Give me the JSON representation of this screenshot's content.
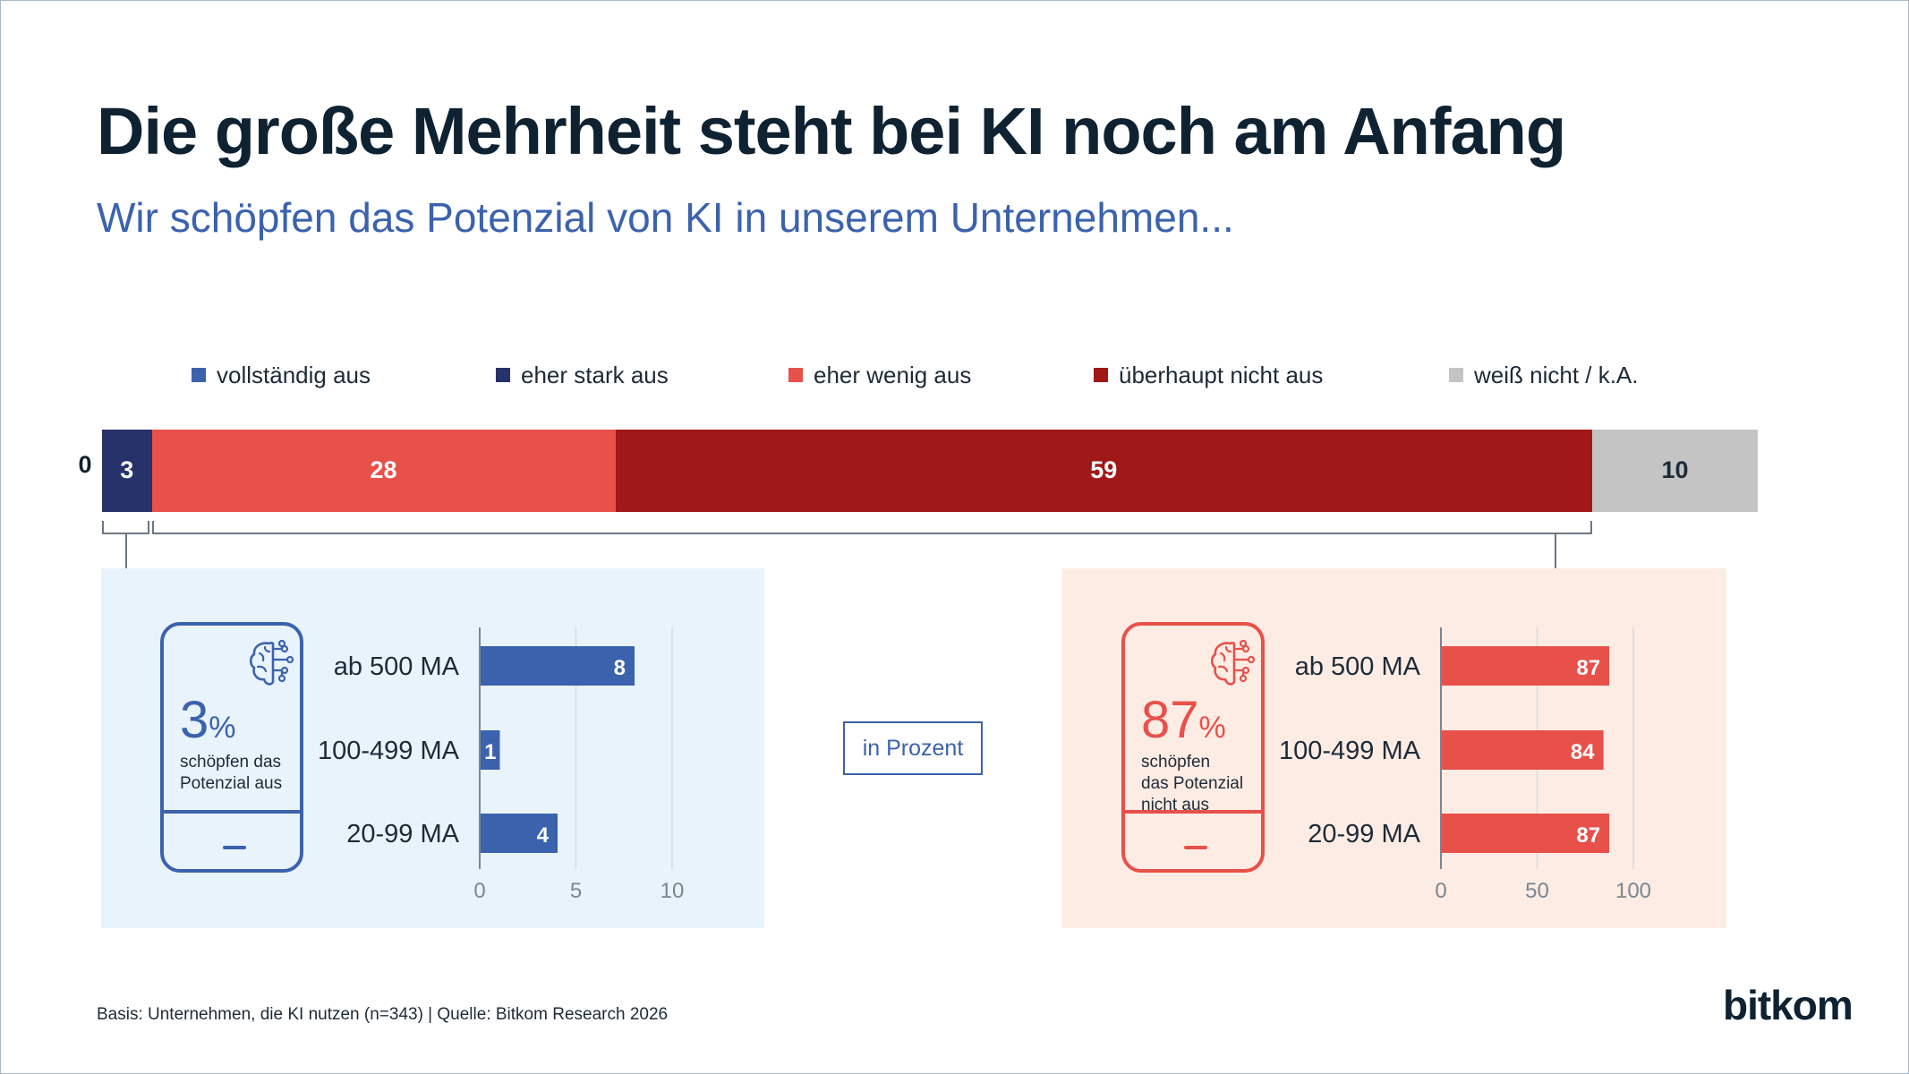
{
  "title": "Die große Mehrheit steht bei KI noch am Anfang",
  "subtitle": "Wir schöpfen das Potenzial von KI in unserem Unternehmen...",
  "unit_note": "in Prozent",
  "footnote": "Basis: Unternehmen, die KI nutzen (n=343) | Quelle: Bitkom Research 2026",
  "logo_text": "bitkom",
  "colors": {
    "vollstaendig": "#3b62ad",
    "eher_stark": "#27326b",
    "eher_wenig": "#e8504a",
    "ueberhaupt_nicht": "#a01818",
    "weiss_nicht": "#c4c4c4",
    "blue_accent": "#3b62ad",
    "red_accent": "#e8504a"
  },
  "left_summary": {
    "number": "3",
    "sign": "%",
    "caption_lines": [
      "schöpfen das",
      "Potenzial aus"
    ]
  },
  "right_summary": {
    "number": "87",
    "sign": "%",
    "caption_lines": [
      "schöpfen",
      "das Potenzial",
      "nicht aus"
    ]
  },
  "chart_data": [
    {
      "type": "bar",
      "orientation": "horizontal-stacked",
      "series": [
        {
          "name": "vollständig aus",
          "value": 0
        },
        {
          "name": "eher stark aus",
          "value": 3
        },
        {
          "name": "eher wenig aus",
          "value": 28
        },
        {
          "name": "überhaupt nicht aus",
          "value": 59
        },
        {
          "name": "weiß nicht / k.A.",
          "value": 10
        }
      ],
      "legend_position": "top"
    },
    {
      "type": "bar",
      "orientation": "horizontal",
      "categories": [
        "ab 500 MA",
        "100-499 MA",
        "20-99 MA"
      ],
      "values": [
        8,
        1,
        4
      ],
      "xlim": [
        0,
        10
      ],
      "xticks": [
        0,
        5,
        10
      ],
      "grid": true
    },
    {
      "type": "bar",
      "orientation": "horizontal",
      "categories": [
        "ab 500 MA",
        "100-499 MA",
        "20-99 MA"
      ],
      "values": [
        87,
        84,
        87
      ],
      "xlim": [
        0,
        100
      ],
      "xticks": [
        0,
        50,
        100
      ],
      "grid": true
    }
  ]
}
